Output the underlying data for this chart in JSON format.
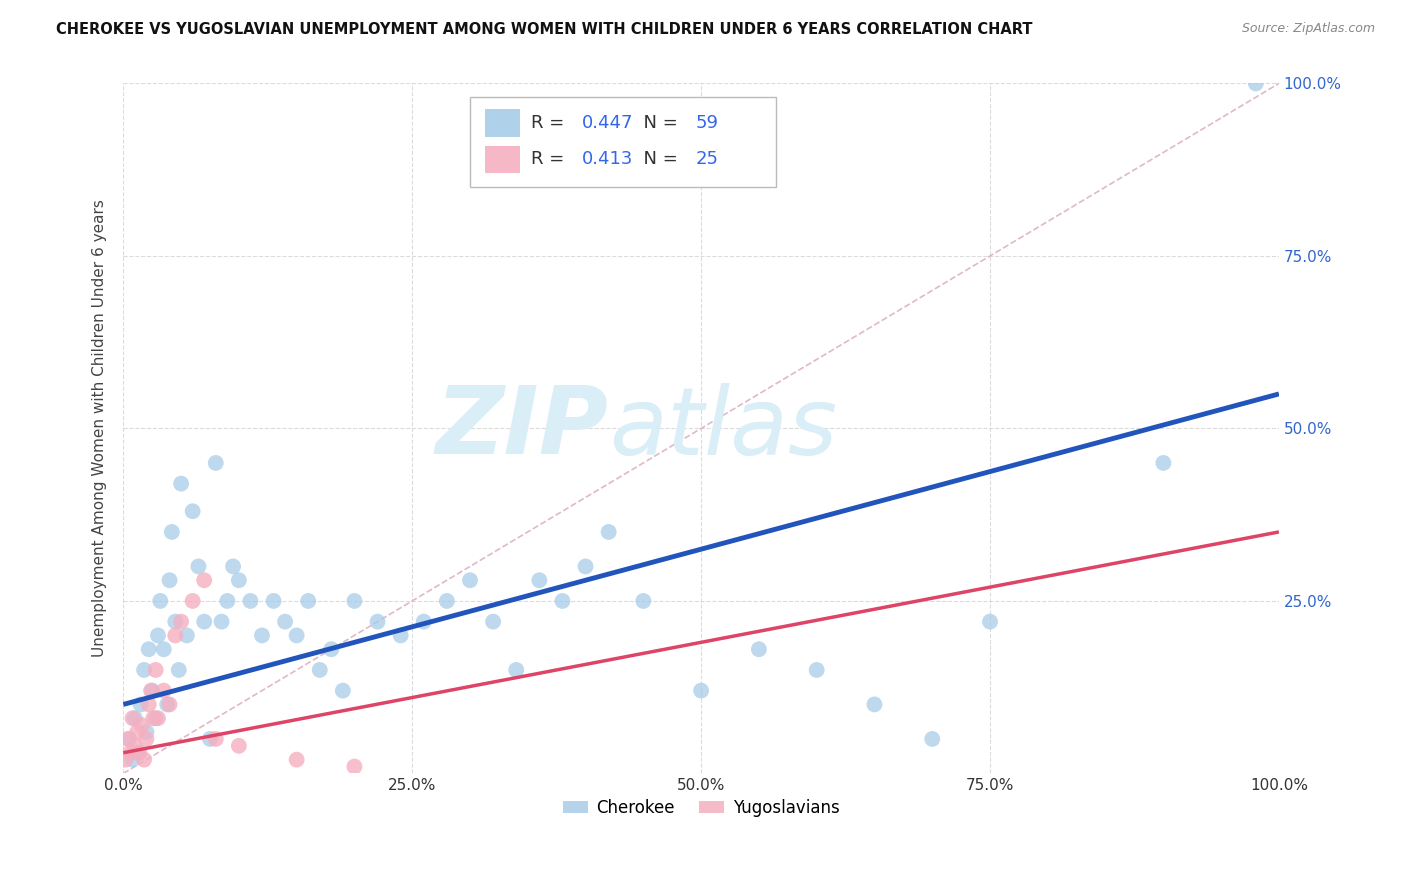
{
  "title": "CHEROKEE VS YUGOSLAVIAN UNEMPLOYMENT AMONG WOMEN WITH CHILDREN UNDER 6 YEARS CORRELATION CHART",
  "source": "Source: ZipAtlas.com",
  "ylabel": "Unemployment Among Women with Children Under 6 years",
  "xlim": [
    0,
    1.0
  ],
  "ylim": [
    0,
    1.0
  ],
  "xticks": [
    0.0,
    0.25,
    0.5,
    0.75,
    1.0
  ],
  "yticks": [
    0.0,
    0.25,
    0.5,
    0.75,
    1.0
  ],
  "xticklabels": [
    "0.0%",
    "25.0%",
    "50.0%",
    "75.0%",
    "100.0%"
  ],
  "right_yticklabels": [
    "",
    "25.0%",
    "50.0%",
    "75.0%",
    "100.0%"
  ],
  "cherokee_R": 0.447,
  "cherokee_N": 59,
  "yugo_R": 0.413,
  "yugo_N": 25,
  "cherokee_color": "#a8cce8",
  "yugo_color": "#f5afc0",
  "cherokee_line_color": "#2255bb",
  "yugo_line_color": "#dd4466",
  "ref_line_color": "#e0b8c8",
  "watermark_color": "#daeef8",
  "background_color": "#ffffff",
  "cherokee_x": [
    0.005,
    0.008,
    0.01,
    0.012,
    0.015,
    0.018,
    0.02,
    0.022,
    0.025,
    0.028,
    0.03,
    0.032,
    0.035,
    0.038,
    0.04,
    0.042,
    0.045,
    0.048,
    0.05,
    0.055,
    0.06,
    0.065,
    0.07,
    0.075,
    0.08,
    0.085,
    0.09,
    0.095,
    0.1,
    0.11,
    0.12,
    0.13,
    0.14,
    0.15,
    0.16,
    0.17,
    0.18,
    0.19,
    0.2,
    0.22,
    0.24,
    0.26,
    0.28,
    0.3,
    0.32,
    0.34,
    0.36,
    0.38,
    0.4,
    0.42,
    0.45,
    0.5,
    0.55,
    0.6,
    0.65,
    0.7,
    0.75,
    0.9,
    0.98
  ],
  "cherokee_y": [
    0.05,
    0.02,
    0.08,
    0.03,
    0.1,
    0.15,
    0.06,
    0.18,
    0.12,
    0.08,
    0.2,
    0.25,
    0.18,
    0.1,
    0.28,
    0.35,
    0.22,
    0.15,
    0.42,
    0.2,
    0.38,
    0.3,
    0.22,
    0.05,
    0.45,
    0.22,
    0.25,
    0.3,
    0.28,
    0.25,
    0.2,
    0.25,
    0.22,
    0.2,
    0.25,
    0.15,
    0.18,
    0.12,
    0.25,
    0.22,
    0.2,
    0.22,
    0.25,
    0.28,
    0.22,
    0.15,
    0.28,
    0.25,
    0.3,
    0.35,
    0.25,
    0.12,
    0.18,
    0.15,
    0.1,
    0.05,
    0.22,
    0.45,
    1.0
  ],
  "yugo_x": [
    0.002,
    0.004,
    0.006,
    0.008,
    0.01,
    0.012,
    0.014,
    0.016,
    0.018,
    0.02,
    0.022,
    0.024,
    0.026,
    0.028,
    0.03,
    0.035,
    0.04,
    0.045,
    0.05,
    0.06,
    0.07,
    0.08,
    0.1,
    0.15,
    0.2
  ],
  "yugo_y": [
    0.02,
    0.05,
    0.03,
    0.08,
    0.04,
    0.06,
    0.03,
    0.07,
    0.02,
    0.05,
    0.1,
    0.12,
    0.08,
    0.15,
    0.08,
    0.12,
    0.1,
    0.2,
    0.22,
    0.25,
    0.28,
    0.05,
    0.04,
    0.02,
    0.01
  ]
}
